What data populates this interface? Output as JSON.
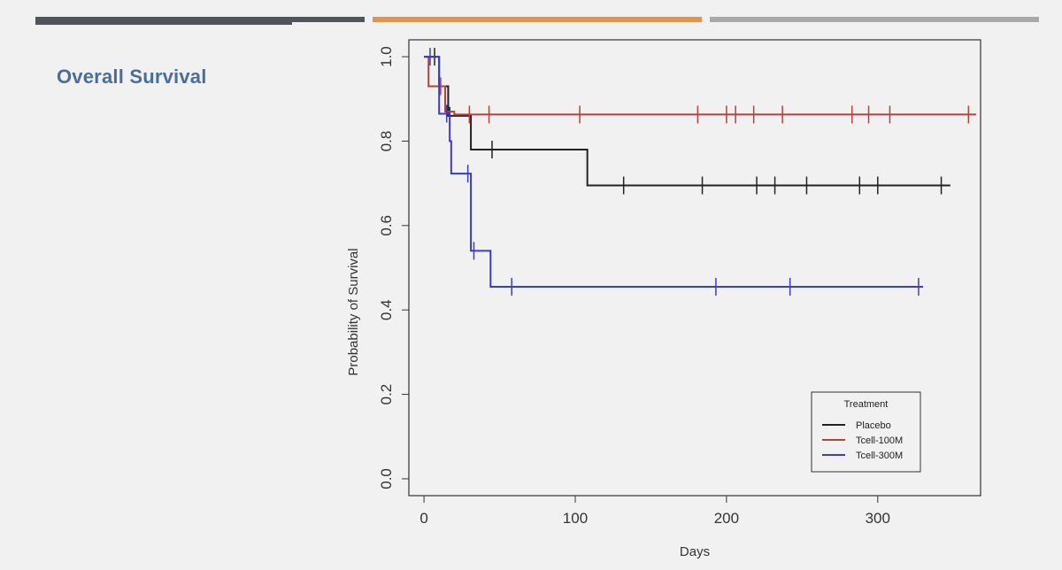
{
  "slide": {
    "title": "Overall Survival"
  },
  "chart_data": {
    "type": "line",
    "subtype": "kaplan-meier step survival curve",
    "xlabel": "Days",
    "ylabel": "Probability of Survival",
    "xlim": [
      -10,
      368
    ],
    "ylim": [
      -0.04,
      1.04
    ],
    "xticks": [
      0,
      100,
      200,
      300
    ],
    "yticks": [
      0.0,
      0.2,
      0.4,
      0.6,
      0.8,
      1.0
    ],
    "ytick_labels": [
      "0.0",
      "0.2",
      "0.4",
      "0.6",
      "0.8",
      "1.0"
    ],
    "xtick_labels": [
      "0",
      "100",
      "200",
      "300"
    ],
    "grid": false,
    "legend": {
      "title": "Treatment",
      "placement": "bottom-right",
      "entries": [
        "Placebo",
        "Tcell-100M",
        "Tcell-300M"
      ]
    },
    "series": [
      {
        "name": "Placebo",
        "color": "#222222",
        "steps": [
          [
            0,
            1.0
          ],
          [
            10,
            0.93
          ],
          [
            16,
            0.86
          ],
          [
            31,
            0.78
          ],
          [
            108,
            0.695
          ],
          [
            348,
            0.695
          ]
        ],
        "censor": [
          7,
          17,
          45,
          132,
          184,
          220,
          232,
          253,
          288,
          300,
          342
        ]
      },
      {
        "name": "Tcell-100M",
        "color": "#b5413a",
        "steps": [
          [
            0,
            1.0
          ],
          [
            3,
            0.93
          ],
          [
            14,
            0.87
          ],
          [
            20,
            0.863
          ],
          [
            365,
            0.863
          ]
        ],
        "censor": [
          11,
          30,
          43,
          103,
          181,
          200,
          206,
          218,
          237,
          283,
          294,
          308,
          360
        ]
      },
      {
        "name": "Tcell-300M",
        "color": "#3c3cc8",
        "steps": [
          [
            0,
            1.0
          ],
          [
            10,
            0.865
          ],
          [
            17,
            0.8
          ],
          [
            18,
            0.723
          ],
          [
            31,
            0.54
          ],
          [
            44,
            0.455
          ],
          [
            330,
            0.455
          ]
        ],
        "censor": [
          4,
          15,
          29,
          33,
          58,
          193,
          242,
          327
        ]
      }
    ]
  }
}
